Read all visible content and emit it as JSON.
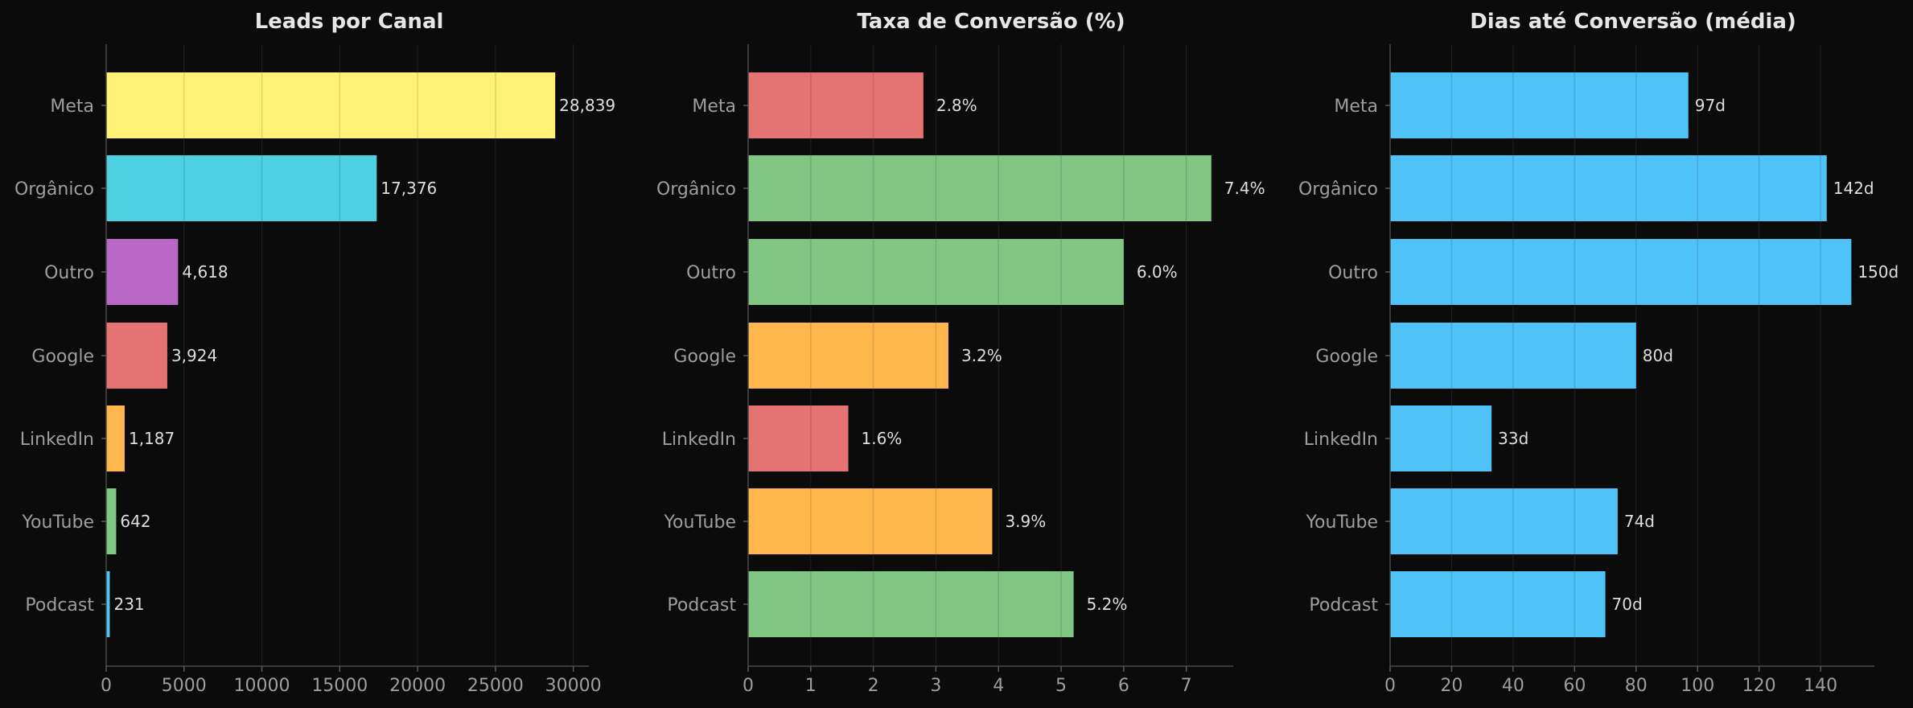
{
  "chart_data": [
    {
      "type": "bar",
      "orientation": "horizontal",
      "title": "Leads por Canal",
      "categories": [
        "Meta",
        "Orgânico",
        "Outro",
        "Google",
        "LinkedIn",
        "YouTube",
        "Podcast"
      ],
      "values": [
        28839,
        17376,
        4618,
        3924,
        1187,
        642,
        231
      ],
      "value_labels": [
        "28,839",
        "17,376",
        "4,618",
        "3,924",
        "1,187",
        "642",
        "231"
      ],
      "colors": [
        "#fff176",
        "#4dd0e1",
        "#ba68c8",
        "#e57373",
        "#ffb74d",
        "#81c784",
        "#4fc3f7"
      ],
      "xlim": [
        0,
        31000
      ],
      "xticks": [
        0,
        5000,
        10000,
        15000,
        20000,
        25000,
        30000
      ],
      "grid": true
    },
    {
      "type": "bar",
      "orientation": "horizontal",
      "title": "Taxa de Conversão (%)",
      "categories": [
        "Meta",
        "Orgânico",
        "Outro",
        "Google",
        "LinkedIn",
        "YouTube",
        "Podcast"
      ],
      "values": [
        2.8,
        7.4,
        6.0,
        3.2,
        1.6,
        3.9,
        5.2
      ],
      "value_labels": [
        "2.8%",
        "7.4%",
        "6.0%",
        "3.2%",
        "1.6%",
        "3.9%",
        "5.2%"
      ],
      "colors": [
        "#e57373",
        "#81c784",
        "#81c784",
        "#ffb74d",
        "#e57373",
        "#ffb74d",
        "#81c784"
      ],
      "xlim": [
        0,
        7.75
      ],
      "xticks": [
        0,
        1,
        2,
        3,
        4,
        5,
        6,
        7
      ],
      "grid": true
    },
    {
      "type": "bar",
      "orientation": "horizontal",
      "title": "Dias até Conversão (média)",
      "categories": [
        "Meta",
        "Orgânico",
        "Outro",
        "Google",
        "LinkedIn",
        "YouTube",
        "Podcast"
      ],
      "values": [
        97,
        142,
        150,
        80,
        33,
        74,
        70
      ],
      "value_labels": [
        "97d",
        "142d",
        "150d",
        "80d",
        "33d",
        "74d",
        "70d"
      ],
      "colors": [
        "#4fc3f7",
        "#4fc3f7",
        "#4fc3f7",
        "#4fc3f7",
        "#4fc3f7",
        "#4fc3f7",
        "#4fc3f7"
      ],
      "xlim": [
        0,
        157.5
      ],
      "xticks": [
        0,
        20,
        40,
        60,
        80,
        100,
        120,
        140
      ],
      "grid": true
    }
  ]
}
